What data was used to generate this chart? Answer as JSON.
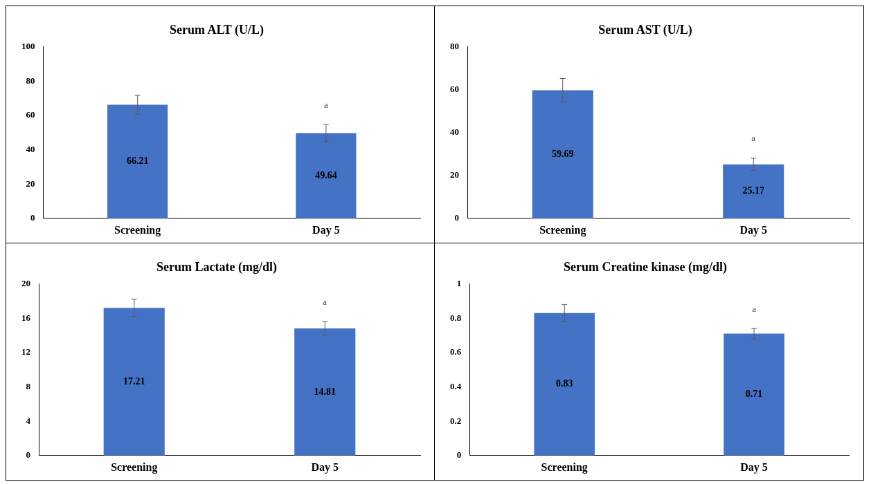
{
  "chart_data": [
    {
      "type": "bar",
      "title": "Serum ALT (U/L)",
      "categories": [
        "Screening",
        "Day 5"
      ],
      "values": [
        66.21,
        49.64
      ],
      "errors": [
        5.5,
        5
      ],
      "color": "#4472c4",
      "ylim": [
        0,
        100
      ],
      "yticks": [
        0,
        20,
        40,
        60,
        80,
        100
      ],
      "grid": false,
      "legend": false,
      "data_labels": true,
      "annotations": [
        "a"
      ]
    },
    {
      "type": "bar",
      "title": "Serum AST (U/L)",
      "categories": [
        "Screening",
        "Day 5"
      ],
      "values": [
        59.69,
        25.17
      ],
      "errors": [
        5.5,
        2.8
      ],
      "color": "#4472c4",
      "ylim": [
        0,
        80
      ],
      "yticks": [
        0,
        20,
        40,
        60,
        80
      ],
      "grid": false,
      "legend": false,
      "data_labels": true,
      "annotations": [
        "a"
      ]
    },
    {
      "type": "bar",
      "title": "Serum Lactate (mg/dl)",
      "categories": [
        "Screening",
        "Day 5"
      ],
      "values": [
        17.21,
        14.81
      ],
      "errors": [
        1,
        0.8
      ],
      "color": "#4472c4",
      "ylim": [
        0,
        20
      ],
      "yticks": [
        0,
        4,
        8,
        12,
        16,
        20
      ],
      "grid": false,
      "legend": false,
      "data_labels": true,
      "annotations": [
        "a"
      ]
    },
    {
      "type": "bar",
      "title": "Serum Creatine kinase (mg/dl)",
      "categories": [
        "Screening",
        "Day 5"
      ],
      "values": [
        0.83,
        0.71
      ],
      "errors": [
        0.05,
        0.03
      ],
      "color": "#4472c4",
      "ylim": [
        0,
        1
      ],
      "yticks": [
        0,
        0.2,
        0.4,
        0.6,
        0.8,
        1
      ],
      "grid": false,
      "legend": false,
      "data_labels": true,
      "annotations": [
        "a"
      ]
    }
  ]
}
